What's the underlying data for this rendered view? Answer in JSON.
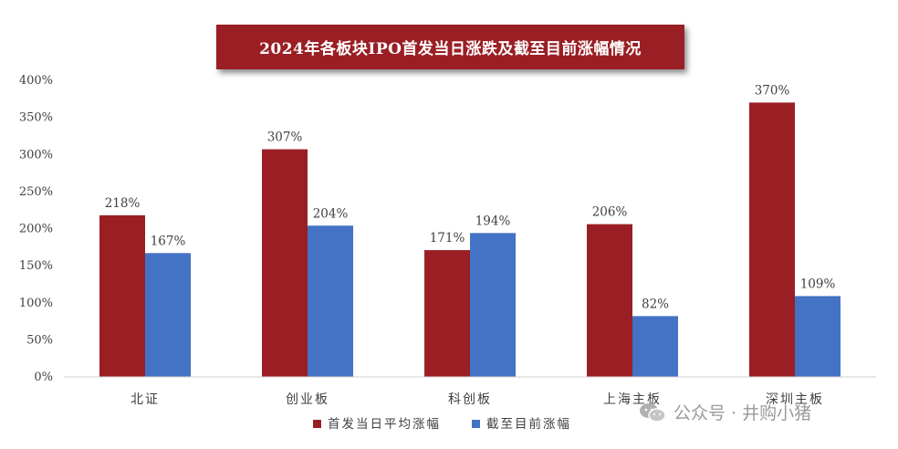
{
  "title": "2024年各板块IPO首发当日涨跌及截至目前涨幅情况",
  "chart_data": {
    "type": "bar",
    "categories": [
      "北证",
      "创业板",
      "科创板",
      "上海主板",
      "深圳主板"
    ],
    "series": [
      {
        "name": "首发当日平均涨幅",
        "values": [
          218,
          307,
          171,
          206,
          370
        ],
        "labels": [
          "218%",
          "307%",
          "171%",
          "206%",
          "370%"
        ],
        "color": "#9a1f25"
      },
      {
        "name": "截至目前涨幅",
        "values": [
          167,
          204,
          194,
          82,
          109
        ],
        "labels": [
          "167%",
          "204%",
          "194%",
          "82%",
          "109%"
        ],
        "color": "#4472c4"
      }
    ],
    "ylim": [
      0,
      400
    ],
    "yticks": [
      0,
      50,
      100,
      150,
      200,
      250,
      300,
      350,
      400
    ],
    "ytick_labels": [
      "0%",
      "50%",
      "100%",
      "150%",
      "200%",
      "250%",
      "300%",
      "350%",
      "400%"
    ],
    "grid": false,
    "legend_position": "bottom"
  },
  "watermark": {
    "text": "公众号 · 井购小猪",
    "icon": "wechat-icon"
  }
}
